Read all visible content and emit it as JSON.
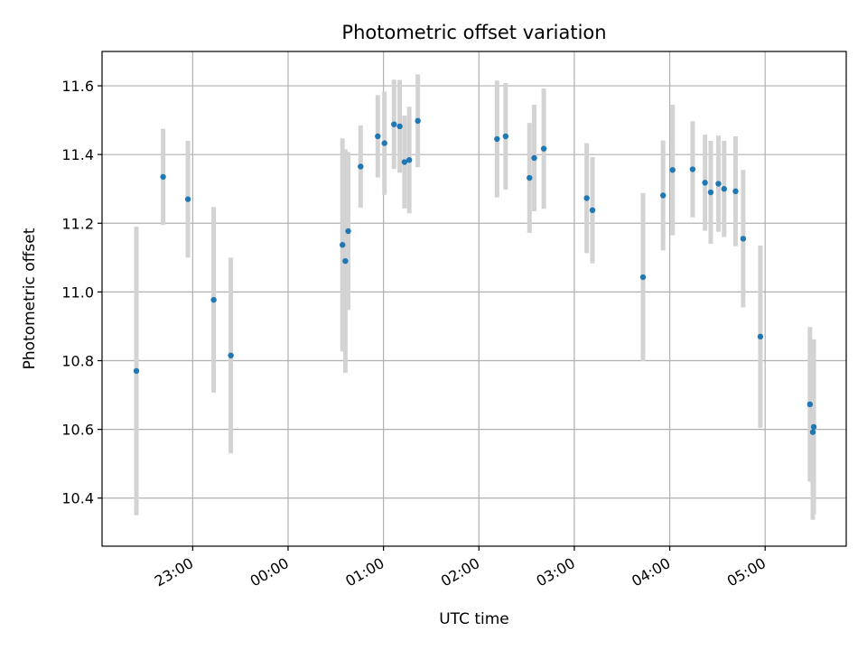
{
  "chart_data": {
    "type": "scatter",
    "title": "Photometric offset variation",
    "xlabel": "UTC time",
    "ylabel": "Photometric offset",
    "grid": true,
    "x_unit": "hours since 00:00 UTC",
    "xlim": [
      -1.95,
      5.85
    ],
    "ylim": [
      10.26,
      11.7
    ],
    "x_ticks": [
      -1,
      0,
      1,
      2,
      3,
      4,
      5
    ],
    "x_tick_labels": [
      "23:00",
      "00:00",
      "01:00",
      "02:00",
      "03:00",
      "04:00",
      "05:00"
    ],
    "y_ticks": [
      10.4,
      10.6,
      10.8,
      11.0,
      11.2,
      11.4,
      11.6
    ],
    "y_tick_labels": [
      "10.4",
      "10.6",
      "10.8",
      "11.0",
      "11.2",
      "11.4",
      "11.6"
    ],
    "point_color": "#1f77b4",
    "errorbar_color": "#d3d3d3",
    "points": [
      {
        "x": -1.59,
        "y": 10.77,
        "err": 0.42
      },
      {
        "x": -1.31,
        "y": 11.335,
        "err": 0.14
      },
      {
        "x": -1.05,
        "y": 11.27,
        "err": 0.17
      },
      {
        "x": -0.78,
        "y": 10.977,
        "err": 0.27
      },
      {
        "x": -0.6,
        "y": 10.815,
        "err": 0.285
      },
      {
        "x": 0.57,
        "y": 11.137,
        "err": 0.31
      },
      {
        "x": 0.6,
        "y": 11.09,
        "err": 0.325
      },
      {
        "x": 0.63,
        "y": 11.177,
        "err": 0.23
      },
      {
        "x": 0.76,
        "y": 11.365,
        "err": 0.12
      },
      {
        "x": 0.94,
        "y": 11.453,
        "err": 0.12
      },
      {
        "x": 1.01,
        "y": 11.433,
        "err": 0.15
      },
      {
        "x": 1.11,
        "y": 11.488,
        "err": 0.13
      },
      {
        "x": 1.17,
        "y": 11.482,
        "err": 0.135
      },
      {
        "x": 1.22,
        "y": 11.378,
        "err": 0.135
      },
      {
        "x": 1.27,
        "y": 11.384,
        "err": 0.155
      },
      {
        "x": 1.36,
        "y": 11.498,
        "err": 0.135
      },
      {
        "x": 2.19,
        "y": 11.445,
        "err": 0.17
      },
      {
        "x": 2.28,
        "y": 11.453,
        "err": 0.155
      },
      {
        "x": 2.53,
        "y": 11.332,
        "err": 0.16
      },
      {
        "x": 2.58,
        "y": 11.39,
        "err": 0.155
      },
      {
        "x": 2.68,
        "y": 11.417,
        "err": 0.175
      },
      {
        "x": 3.13,
        "y": 11.273,
        "err": 0.16
      },
      {
        "x": 3.19,
        "y": 11.238,
        "err": 0.155
      },
      {
        "x": 3.72,
        "y": 11.043,
        "err": 0.245
      },
      {
        "x": 3.93,
        "y": 11.281,
        "err": 0.16
      },
      {
        "x": 4.03,
        "y": 11.355,
        "err": 0.19
      },
      {
        "x": 4.24,
        "y": 11.357,
        "err": 0.14
      },
      {
        "x": 4.37,
        "y": 11.318,
        "err": 0.14
      },
      {
        "x": 4.43,
        "y": 11.29,
        "err": 0.15
      },
      {
        "x": 4.51,
        "y": 11.315,
        "err": 0.14
      },
      {
        "x": 4.57,
        "y": 11.3,
        "err": 0.14
      },
      {
        "x": 4.69,
        "y": 11.293,
        "err": 0.16
      },
      {
        "x": 4.77,
        "y": 11.155,
        "err": 0.2
      },
      {
        "x": 4.95,
        "y": 10.87,
        "err": 0.265
      },
      {
        "x": 5.47,
        "y": 10.673,
        "err": 0.225
      },
      {
        "x": 5.51,
        "y": 10.607,
        "err": 0.255
      },
      {
        "x": 5.5,
        "y": 10.592,
        "err": 0.255
      }
    ]
  }
}
